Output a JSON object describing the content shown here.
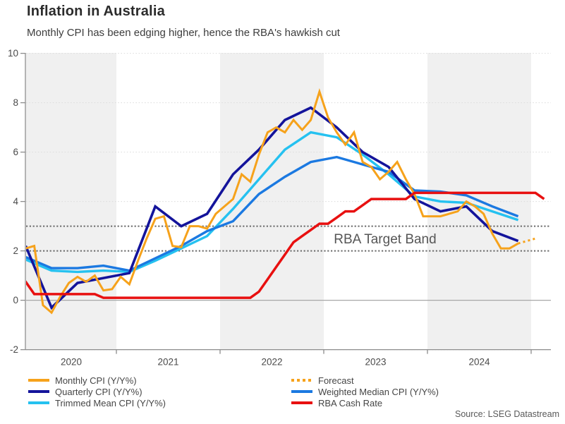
{
  "source": "Source: LSEG Datastream",
  "colors": {
    "orange": "#F6A21B",
    "navy": "#14149B",
    "cyan": "#25C1F0",
    "blue": "#1B79E1",
    "red": "#E81010",
    "band": "#F0F0F0",
    "grid": "#DCDCDC",
    "target": "#6B6B6B",
    "zero": "#A8A8A8",
    "axis": "#8C8C8C",
    "tick_text": "#4A4A4A"
  },
  "chart_data": {
    "type": "line",
    "title": "Inflation in Australia",
    "subtitle": "Monthly CPI has been edging higher, hence the RBA's hawkish cut",
    "xlabel": "",
    "ylabel": "",
    "ylim": [
      -2,
      10
    ],
    "yticks": [
      10,
      8,
      6,
      4,
      2,
      0,
      -2
    ],
    "grid_values": [
      10,
      8,
      6,
      4,
      -2
    ],
    "x_year_labels": [
      "2020",
      "2021",
      "2022",
      "2023",
      "2024"
    ],
    "shaded_years": [
      2020,
      2022,
      2024
    ],
    "x_range_years": [
      2020.13,
      2025.2
    ],
    "legend_position": "bottom",
    "target_band": {
      "low": 2,
      "high": 3,
      "label": "RBA Target Band"
    },
    "series": [
      {
        "name": "Trimmed Mean CPI (Y/Y%)",
        "color_key": "cyan",
        "style": "solid",
        "start_month": 1,
        "step_months": 3,
        "values": [
          1.65,
          1.2,
          1.15,
          1.2,
          1.15,
          1.6,
          2.1,
          2.6,
          3.7,
          4.9,
          6.1,
          6.8,
          6.6,
          5.9,
          5.1,
          4.2,
          4.0,
          3.95,
          3.6,
          3.25
        ]
      },
      {
        "name": "Weighted Median CPI (Y/Y%)",
        "color_key": "blue",
        "style": "solid",
        "start_month": 1,
        "step_months": 3,
        "values": [
          1.75,
          1.3,
          1.3,
          1.4,
          1.2,
          1.7,
          2.2,
          2.8,
          3.2,
          4.3,
          5.0,
          5.6,
          5.8,
          5.5,
          5.2,
          4.45,
          4.4,
          4.25,
          3.8,
          3.4
        ]
      },
      {
        "name": "Quarterly CPI (Y/Y%)",
        "color_key": "navy",
        "style": "solid",
        "start_month": 1,
        "step_months": 3,
        "values": [
          2.2,
          -0.3,
          0.7,
          0.9,
          1.1,
          3.8,
          3.0,
          3.5,
          5.1,
          6.1,
          7.3,
          7.8,
          7.0,
          6.0,
          5.4,
          4.1,
          3.6,
          3.8,
          2.8,
          2.4
        ]
      },
      {
        "name": "Monthly CPI (Y/Y%)",
        "color_key": "orange",
        "style": "solid",
        "start_month": 0,
        "step_months": 1,
        "values": [
          2.2,
          2.1,
          2.2,
          -0.2,
          -0.5,
          0.15,
          0.7,
          0.95,
          0.75,
          1.0,
          0.4,
          0.45,
          0.95,
          0.65,
          1.6,
          2.5,
          3.3,
          3.4,
          2.2,
          2.15,
          3.0,
          3.0,
          2.9,
          3.5,
          3.8,
          4.1,
          5.1,
          4.8,
          5.9,
          6.8,
          7.0,
          6.8,
          7.3,
          6.9,
          7.3,
          8.45,
          7.4,
          6.8,
          6.3,
          6.8,
          5.6,
          5.4,
          4.9,
          5.2,
          5.6,
          4.9,
          4.3,
          3.4,
          3.4,
          3.4,
          3.5,
          3.6,
          4.0,
          3.8,
          3.5,
          2.7,
          2.1,
          2.1,
          2.3
        ]
      },
      {
        "name": "Forecast",
        "color_key": "orange",
        "style": "dotted",
        "start_month": 58,
        "step_months": 1,
        "values": [
          2.3,
          2.4,
          2.5
        ]
      },
      {
        "name": "RBA Cash Rate",
        "color_key": "red",
        "style": "solid",
        "start_month": 0,
        "step_months": 1,
        "values": [
          0.75,
          0.75,
          0.25,
          0.25,
          0.25,
          0.25,
          0.25,
          0.25,
          0.25,
          0.25,
          0.1,
          0.1,
          0.1,
          0.1,
          0.1,
          0.1,
          0.1,
          0.1,
          0.1,
          0.1,
          0.1,
          0.1,
          0.1,
          0.1,
          0.1,
          0.1,
          0.1,
          0.1,
          0.35,
          0.85,
          1.35,
          1.85,
          2.35,
          2.6,
          2.85,
          3.1,
          3.1,
          3.35,
          3.6,
          3.6,
          3.85,
          4.1,
          4.1,
          4.1,
          4.1,
          4.1,
          4.35,
          4.35,
          4.35,
          4.35,
          4.35,
          4.35,
          4.35,
          4.35,
          4.35,
          4.35,
          4.35,
          4.35,
          4.35,
          4.35,
          4.35,
          4.1
        ]
      }
    ]
  },
  "legend": {
    "items": [
      {
        "label": "Monthly CPI (Y/Y%)",
        "color_key": "orange",
        "style": "solid"
      },
      {
        "label": "Quarterly CPI (Y/Y%)",
        "color_key": "navy",
        "style": "solid"
      },
      {
        "label": "Trimmed Mean CPI (Y/Y%)",
        "color_key": "cyan",
        "style": "solid"
      },
      {
        "label": "Forecast",
        "color_key": "orange",
        "style": "dotted"
      },
      {
        "label": "Weighted Median CPI (Y/Y%)",
        "color_key": "blue",
        "style": "solid"
      },
      {
        "label": "RBA Cash Rate",
        "color_key": "red",
        "style": "solid"
      }
    ]
  }
}
